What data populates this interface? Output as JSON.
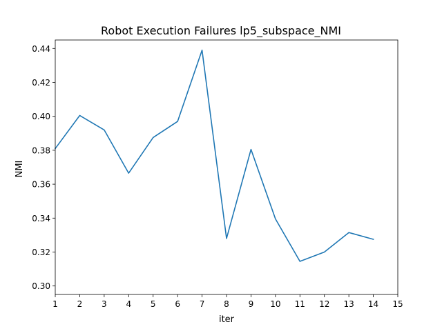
{
  "chart_data": {
    "type": "line",
    "title": "Robot Execution Failures lp5_subspace_NMI",
    "xlabel": "iter",
    "ylabel": "NMI",
    "xlim": [
      1,
      15
    ],
    "ylim": [
      0.295,
      0.445
    ],
    "x_ticks": [
      "1",
      "2",
      "3",
      "4",
      "5",
      "6",
      "7",
      "8",
      "9",
      "10",
      "11",
      "12",
      "13",
      "14",
      "15"
    ],
    "y_ticks": [
      "0.30",
      "0.32",
      "0.34",
      "0.36",
      "0.38",
      "0.40",
      "0.42",
      "0.44"
    ],
    "grid": false,
    "series": [
      {
        "color": "#1f77b4",
        "x": [
          1,
          2,
          3,
          4,
          5,
          6,
          7,
          8,
          9,
          10,
          11,
          12,
          13,
          14
        ],
        "y": [
          0.381,
          0.4005,
          0.392,
          0.3665,
          0.3875,
          0.397,
          0.439,
          0.328,
          0.3805,
          0.3395,
          0.3145,
          0.32,
          0.3315,
          0.3275
        ]
      }
    ]
  }
}
